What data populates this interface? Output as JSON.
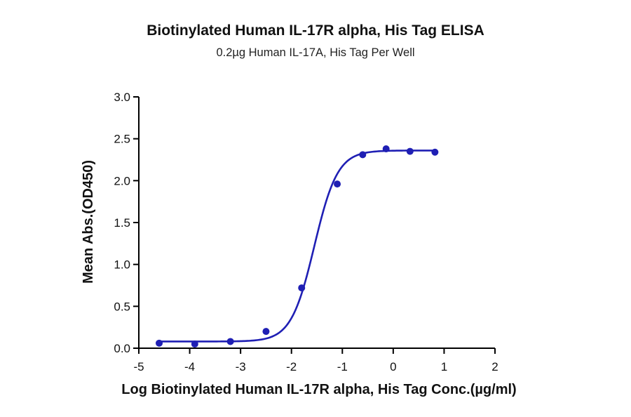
{
  "chart_data": {
    "type": "scatter",
    "title": "Biotinylated Human IL-17R alpha, His Tag ELISA",
    "subtitle": "0.2µg Human IL-17A, His Tag Per Well",
    "xlabel": "Log Biotinylated Human IL-17R alpha, His Tag Conc.(µg/ml)",
    "ylabel": "Mean Abs.(OD450)",
    "xlim": [
      -5,
      2
    ],
    "ylim": [
      0,
      3
    ],
    "x_ticks": [
      "-5",
      "-4",
      "-3",
      "-2",
      "-1",
      "0",
      "1",
      "2"
    ],
    "y_ticks": [
      "0.0",
      "0.5",
      "1.0",
      "1.5",
      "2.0",
      "2.5",
      "3.0"
    ],
    "grid": false,
    "point_color": "#1f1fb4",
    "curve_color": "#1f1fb4",
    "series": [
      {
        "x": [
          -4.6,
          -3.9,
          -3.2,
          -2.5,
          -1.8,
          -1.1,
          -0.6,
          -0.14,
          0.33,
          0.82
        ],
        "y": [
          0.06,
          0.05,
          0.08,
          0.2,
          0.72,
          1.96,
          2.31,
          2.38,
          2.35,
          2.34
        ]
      }
    ],
    "fit": {
      "model": "4PL",
      "bottom": 0.08,
      "top": 2.36,
      "log_ec50": -1.55,
      "hill_slope": 1.9
    }
  }
}
